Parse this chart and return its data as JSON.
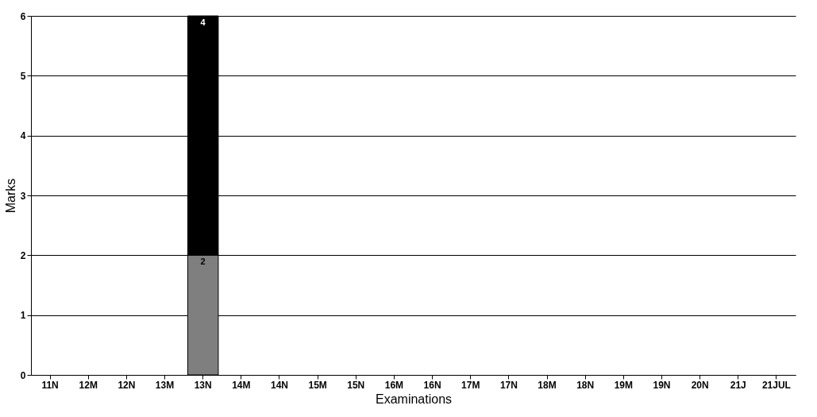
{
  "chart_data": {
    "type": "bar",
    "xlabel": "Examinations",
    "ylabel": "Marks",
    "categories": [
      "11N",
      "12M",
      "12N",
      "13M",
      "13N",
      "14M",
      "14N",
      "15M",
      "15N",
      "16M",
      "16N",
      "17M",
      "17N",
      "18M",
      "18N",
      "19M",
      "19N",
      "20N",
      "21J",
      "21JUL"
    ],
    "series": [
      {
        "color": "#7f7f7f",
        "values": [
          null,
          null,
          null,
          null,
          2,
          null,
          null,
          null,
          null,
          null,
          null,
          null,
          null,
          null,
          null,
          null,
          null,
          null,
          null,
          null
        ]
      },
      {
        "color": "#000000",
        "values": [
          null,
          null,
          null,
          null,
          4,
          null,
          null,
          null,
          null,
          null,
          null,
          null,
          null,
          null,
          null,
          null,
          null,
          null,
          null,
          null
        ]
      }
    ],
    "stacked": true,
    "data_labels": true,
    "ylim": [
      0,
      6
    ],
    "yticks": [
      0,
      1,
      2,
      3,
      4,
      5,
      6
    ],
    "grid": "y",
    "legend": false
  }
}
